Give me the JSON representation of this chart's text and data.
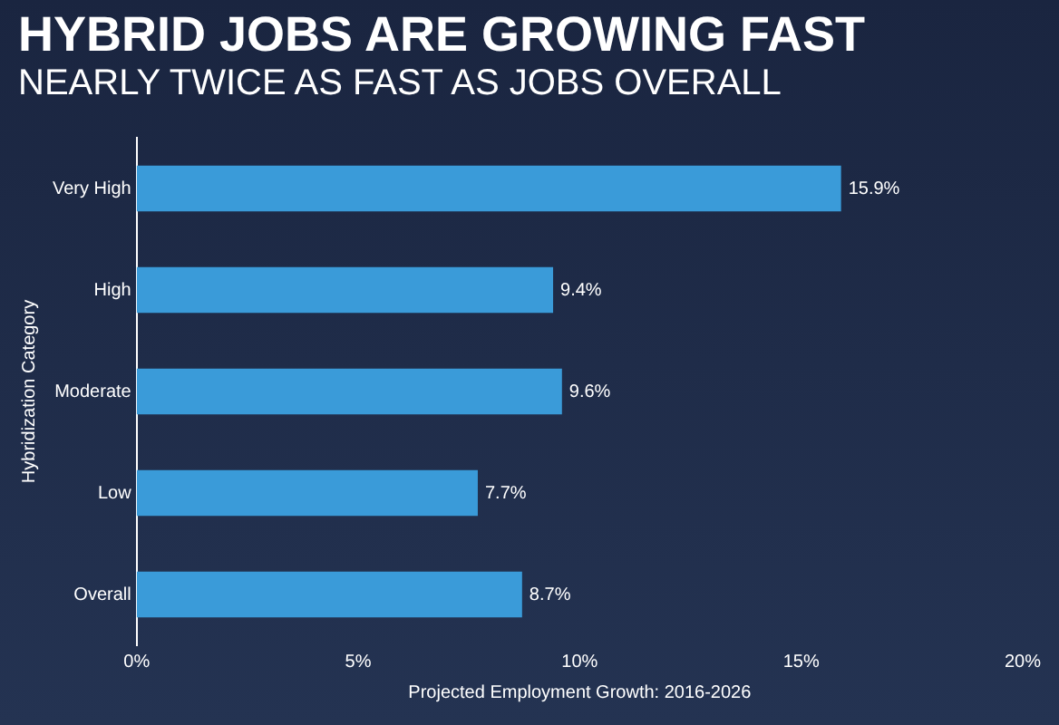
{
  "chart_data": {
    "type": "bar",
    "orientation": "horizontal",
    "title": "HYBRID JOBS ARE GROWING FAST",
    "subtitle": "NEARLY TWICE AS FAST AS JOBS OVERALL",
    "categories": [
      "Very High",
      "High",
      "Moderate",
      "Low",
      "Overall"
    ],
    "values": [
      15.9,
      9.4,
      9.6,
      7.7,
      8.7
    ],
    "color": "#3a9bd9",
    "value_labels": [
      "15.9%",
      "9.4%",
      "9.6%",
      "7.7%",
      "8.7%"
    ],
    "xlabel": "Projected Employment Growth: 2016-2026",
    "ylabel": "Hybridization Category",
    "xlim": [
      0,
      20
    ],
    "xticks": [
      {
        "value": 0,
        "label": "0%"
      },
      {
        "value": 5,
        "label": "5%"
      },
      {
        "value": 10,
        "label": "10%"
      },
      {
        "value": 15,
        "label": "15%"
      },
      {
        "value": 20,
        "label": "20%"
      }
    ],
    "grid": false,
    "legend": false
  }
}
